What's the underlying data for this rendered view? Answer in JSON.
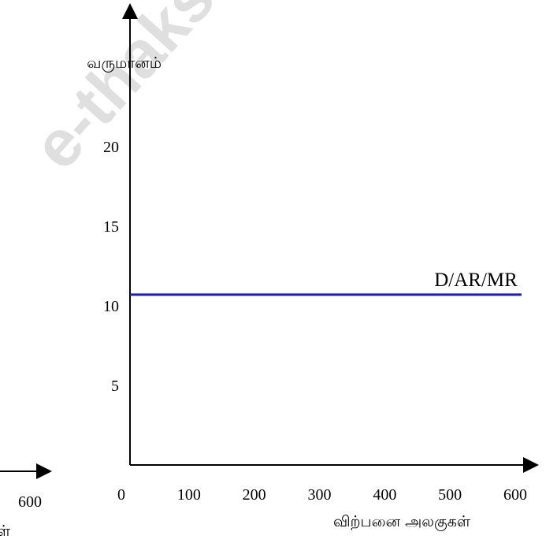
{
  "chart_data": {
    "type": "line",
    "xlabel": "விற்பனை அலகுகள்",
    "ylabel": "வருமானம்",
    "x_ticks": [
      "0",
      "100",
      "200",
      "300",
      "400",
      "500",
      "600"
    ],
    "y_ticks": [
      "5",
      "10",
      "15",
      "20"
    ],
    "xlim": [
      0,
      600
    ],
    "ylim": [
      0,
      25
    ],
    "series": [
      {
        "name": "D/AR/MR",
        "x": [
          0,
          600
        ],
        "y": [
          10.7,
          10.7
        ],
        "color": "#1f1fa8"
      }
    ],
    "grid": false,
    "legend": "none"
  },
  "partial_axis": {
    "tick": "600",
    "label_fragment": "ள்"
  },
  "watermark": {
    "text": "e-thaks"
  }
}
